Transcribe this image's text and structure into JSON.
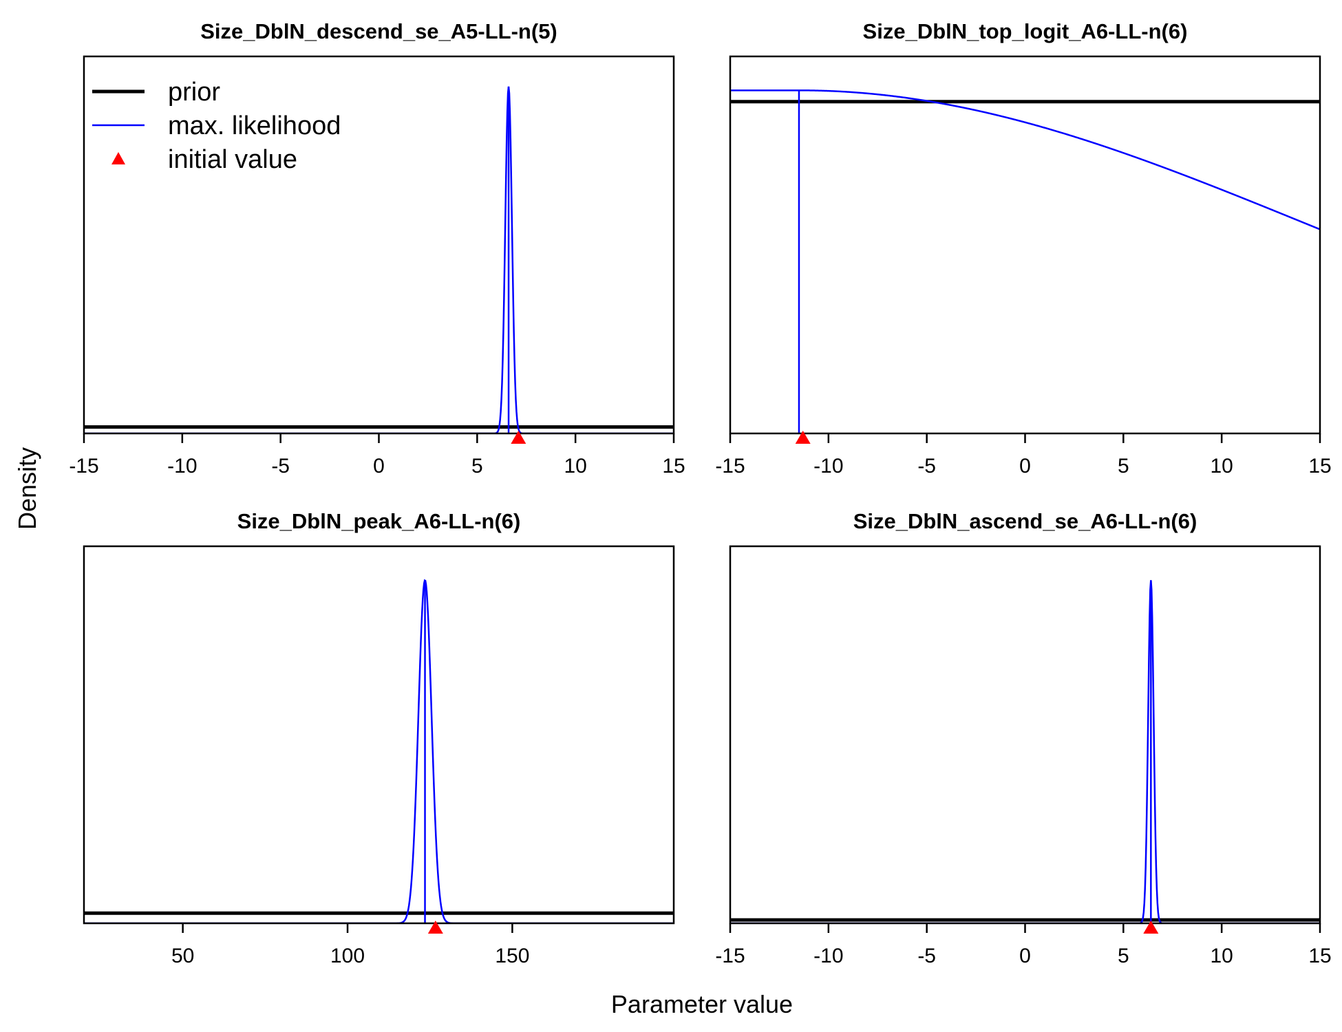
{
  "figure": {
    "ylabel": "Density",
    "xlabel": "Parameter value"
  },
  "legend": {
    "items": [
      {
        "label": "prior",
        "symbol": "thick-black-line",
        "color": "#000000"
      },
      {
        "label": "max. likelihood",
        "symbol": "thin-blue-line",
        "color": "#0000FF"
      },
      {
        "label": "initial value",
        "symbol": "red-triangle",
        "color": "#FF0000"
      }
    ],
    "placement": "top-left of first panel"
  },
  "colors": {
    "prior": "#000000",
    "mle": "#0000FF",
    "initial": "#FF0000"
  },
  "chart_data": [
    {
      "type": "line",
      "title": "Size_DblN_descend_se_A5-LL-n(5)",
      "xlim": [
        -15,
        15
      ],
      "xticks": [
        -15,
        -10,
        -5,
        0,
        5,
        10,
        15
      ],
      "ylim": [
        0,
        1
      ],
      "yaxis_shown": false,
      "grid": false,
      "prior_level": 0.017,
      "mle": {
        "mean": 6.6,
        "sd": 0.17,
        "peak": 0.92
      },
      "initial_value": 7.1
    },
    {
      "type": "line",
      "title": "Size_DblN_top_logit_A6-LL-n(6)",
      "xlim": [
        -15,
        15
      ],
      "xticks": [
        -15,
        -10,
        -5,
        0,
        5,
        10,
        15
      ],
      "ylim": [
        0,
        1
      ],
      "yaxis_shown": false,
      "grid": false,
      "prior_level": 0.88,
      "mle": {
        "mean": -11.5,
        "sd": 26,
        "peak": 0.91,
        "truncated_below": true
      },
      "initial_value": -11.3
    },
    {
      "type": "line",
      "title": "Size_DblN_peak_A6-LL-n(6)",
      "xlim": [
        20,
        199
      ],
      "xticks": [
        50,
        100,
        150
      ],
      "ylim": [
        0,
        1
      ],
      "yaxis_shown": false,
      "grid": false,
      "prior_level": 0.027,
      "mle": {
        "mean": 123.5,
        "sd": 2.0,
        "peak": 0.91
      },
      "initial_value": 126.7
    },
    {
      "type": "line",
      "title": "Size_DblN_ascend_se_A6-LL-n(6)",
      "xlim": [
        -15,
        15
      ],
      "xticks": [
        -15,
        -10,
        -5,
        0,
        5,
        10,
        15
      ],
      "ylim": [
        0,
        1
      ],
      "yaxis_shown": false,
      "grid": false,
      "prior_level": 0.009,
      "mle": {
        "mean": 6.4,
        "sd": 0.14,
        "peak": 0.91
      },
      "initial_value": 6.4
    }
  ]
}
